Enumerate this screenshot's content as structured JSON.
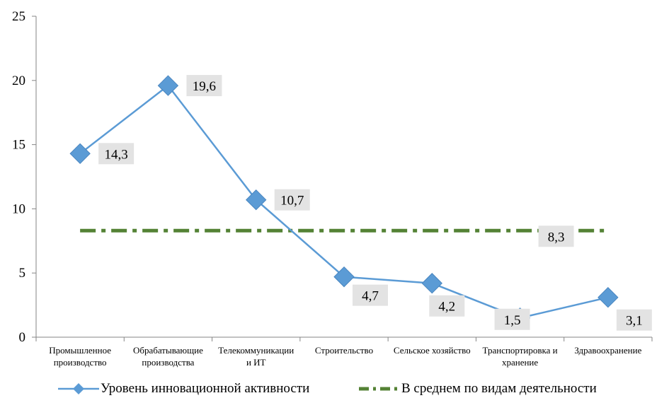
{
  "chart_data": {
    "type": "line",
    "categories": [
      [
        "Промышленное",
        "производство"
      ],
      [
        "Обрабатывающие",
        "производства"
      ],
      [
        "Телекоммуникации",
        "и ИТ"
      ],
      [
        "Строительство"
      ],
      [
        "Сельское хозяйство"
      ],
      [
        "Транспортировка и",
        "хранение"
      ],
      [
        "Здравоохранение"
      ]
    ],
    "series": [
      {
        "name": "Уровень инновационной активности",
        "values": [
          14.3,
          19.6,
          10.7,
          4.7,
          4.2,
          1.5,
          3.1
        ],
        "labels": [
          "14,3",
          "19,6",
          "10,7",
          "4,7",
          "4,2",
          "1,5",
          "3,1"
        ],
        "color": "#5b9bd5",
        "marker": "diamond",
        "style": "solid"
      },
      {
        "name": "В среднем по видам деятельности",
        "values": [
          8.3,
          8.3,
          8.3,
          8.3,
          8.3,
          8.3,
          8.3
        ],
        "labels": [
          "",
          "",
          "",
          "",
          "",
          "8,3",
          ""
        ],
        "color": "#548235",
        "style": "dashed"
      }
    ],
    "yticks": [
      "0",
      "5",
      "10",
      "15",
      "20",
      "25"
    ],
    "ylim": [
      0,
      25
    ],
    "grid": false,
    "legend_position": "bottom"
  }
}
